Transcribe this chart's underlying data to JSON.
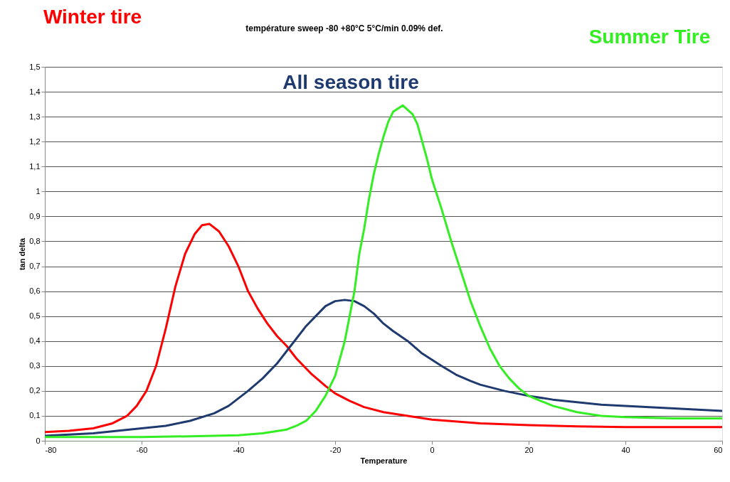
{
  "chart_data": {
    "type": "line",
    "title": "température sweep  -80 +80°C 5°C/min 0.09% def.",
    "xlabel": "Temperature",
    "ylabel": "tan delta",
    "xlim": [
      -80,
      60
    ],
    "xticks": [
      -80,
      -60,
      -40,
      -20,
      0,
      20,
      40,
      60
    ],
    "ylim": [
      0,
      1.5
    ],
    "yticks": [
      0,
      {
        "value": 0.1,
        "label": "0,1"
      },
      {
        "value": 0.2,
        "label": "0,2"
      },
      {
        "value": 0.3,
        "label": "0,3"
      },
      {
        "value": 0.4,
        "label": "0,4"
      },
      {
        "value": 0.5,
        "label": "0,5"
      },
      {
        "value": 0.6,
        "label": "0,6"
      },
      {
        "value": 0.7,
        "label": "0,7"
      },
      {
        "value": 0.8,
        "label": "0,8"
      },
      {
        "value": 0.9,
        "label": "0,9"
      },
      1,
      {
        "value": 1.1,
        "label": "1,1"
      },
      {
        "value": 1.2,
        "label": "1,2"
      },
      {
        "value": 1.3,
        "label": "1,3"
      },
      {
        "value": 1.4,
        "label": "1,4"
      },
      {
        "value": 1.5,
        "label": "1,5"
      }
    ],
    "grid": "y",
    "marker": "none",
    "line_style": "solid",
    "series": [
      {
        "name": "Winter tire",
        "color": "#ff0000",
        "x": [
          -80,
          -75,
          -70,
          -66,
          -63,
          -61,
          -59,
          -57,
          -55,
          -53,
          -51,
          -49,
          -47.5,
          -46,
          -44,
          -42,
          -40,
          -38,
          -36,
          -34,
          -32,
          -30,
          -28,
          -25,
          -22,
          -20,
          -17,
          -14,
          -10,
          -5,
          0,
          10,
          20,
          30,
          40,
          50,
          60
        ],
        "values": [
          0.035,
          0.04,
          0.05,
          0.07,
          0.1,
          0.14,
          0.2,
          0.3,
          0.45,
          0.62,
          0.75,
          0.83,
          0.865,
          0.87,
          0.84,
          0.78,
          0.7,
          0.6,
          0.53,
          0.47,
          0.42,
          0.38,
          0.33,
          0.27,
          0.22,
          0.19,
          0.16,
          0.135,
          0.115,
          0.1,
          0.085,
          0.07,
          0.063,
          0.058,
          0.055,
          0.055,
          0.055
        ]
      },
      {
        "name": "All season tire",
        "color": "#1f3a6e",
        "x": [
          -80,
          -70,
          -60,
          -55,
          -50,
          -45,
          -42,
          -40,
          -38,
          -35,
          -32,
          -30,
          -28,
          -26,
          -24,
          -22,
          -20,
          -18,
          -16,
          -14,
          -12,
          -10,
          -8,
          -5,
          -2,
          0,
          2,
          5,
          8,
          10,
          15,
          20,
          25,
          30,
          35,
          40,
          45,
          50,
          55,
          60
        ],
        "values": [
          0.02,
          0.03,
          0.05,
          0.06,
          0.08,
          0.11,
          0.14,
          0.17,
          0.2,
          0.25,
          0.31,
          0.36,
          0.41,
          0.46,
          0.5,
          0.54,
          0.56,
          0.565,
          0.56,
          0.54,
          0.51,
          0.47,
          0.44,
          0.4,
          0.35,
          0.325,
          0.3,
          0.265,
          0.24,
          0.225,
          0.2,
          0.18,
          0.165,
          0.155,
          0.145,
          0.14,
          0.135,
          0.13,
          0.125,
          0.12
        ]
      },
      {
        "name": "Summer Tire",
        "color": "#33ee22",
        "x": [
          -80,
          -60,
          -50,
          -40,
          -35,
          -30,
          -28,
          -26,
          -24,
          -22,
          -20,
          -18,
          -16,
          -15,
          -14,
          -13,
          -12,
          -11,
          -10,
          -9,
          -8,
          -6,
          -4,
          -3,
          -2,
          -1,
          0,
          2,
          4,
          6,
          8,
          10,
          12,
          14,
          16,
          18,
          20,
          25,
          30,
          35,
          40,
          50,
          60
        ],
        "values": [
          0.015,
          0.015,
          0.018,
          0.022,
          0.03,
          0.045,
          0.06,
          0.08,
          0.12,
          0.18,
          0.26,
          0.4,
          0.6,
          0.75,
          0.85,
          0.97,
          1.07,
          1.15,
          1.22,
          1.28,
          1.32,
          1.345,
          1.31,
          1.27,
          1.2,
          1.13,
          1.05,
          0.93,
          0.8,
          0.68,
          0.56,
          0.46,
          0.37,
          0.3,
          0.25,
          0.21,
          0.18,
          0.14,
          0.115,
          0.1,
          0.095,
          0.09,
          0.09
        ]
      }
    ]
  }
}
